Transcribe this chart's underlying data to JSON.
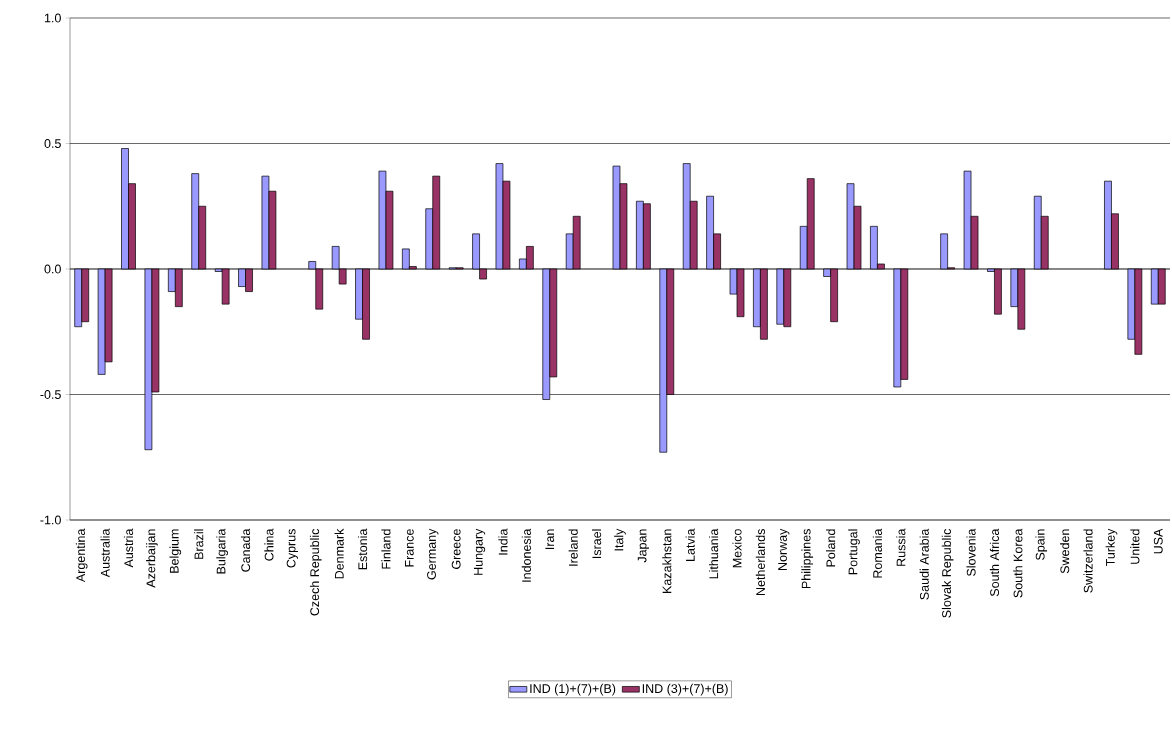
{
  "chart_data": {
    "type": "bar",
    "categories": [
      "Argentina",
      "Australia",
      "Austria",
      "Azerbaijan",
      "Belgium",
      "Brazil",
      "Bulgaria",
      "Canada",
      "China",
      "Cyprus",
      "Czech Republic",
      "Denmark",
      "Estonia",
      "Finland",
      "France",
      "Germany",
      "Greece",
      "Hungary",
      "India",
      "Indonesia",
      "Iran",
      "Ireland",
      "Israel",
      "Italy",
      "Japan",
      "Kazakhstan",
      "Latvia",
      "Lithuania",
      "Mexico",
      "Netherlands",
      "Norway",
      "Philippines",
      "Poland",
      "Portugal",
      "Romania",
      "Russia",
      "Saudi Arabia",
      "Slovak Republic",
      "Slovenia",
      "South Africa",
      "South Korea",
      "Spain",
      "Sweden",
      "Switzerland",
      "Turkey",
      "United",
      "USA"
    ],
    "series": [
      {
        "name": "IND (1)+(7)+(B)",
        "color": "#9999ff",
        "values": [
          -0.23,
          -0.42,
          0.48,
          -0.72,
          -0.09,
          0.38,
          -0.01,
          -0.07,
          0.37,
          null,
          0.03,
          0.09,
          -0.2,
          0.39,
          0.08,
          0.24,
          0.005,
          0.14,
          0.42,
          0.04,
          -0.52,
          0.14,
          null,
          0.41,
          0.27,
          -0.73,
          0.42,
          0.29,
          -0.1,
          -0.23,
          -0.22,
          0.17,
          -0.03,
          0.34,
          0.17,
          -0.47,
          null,
          0.14,
          0.39,
          -0.01,
          -0.15,
          0.29,
          null,
          null,
          0.35,
          -0.28,
          -0.14
        ]
      },
      {
        "name": "IND (3)+(7)+(B)",
        "color": "#993366",
        "values": [
          -0.21,
          -0.37,
          0.34,
          -0.49,
          -0.15,
          0.25,
          -0.14,
          -0.09,
          0.31,
          null,
          -0.16,
          -0.06,
          -0.28,
          0.31,
          0.01,
          0.37,
          0.005,
          -0.04,
          0.35,
          0.09,
          -0.43,
          0.21,
          null,
          0.34,
          0.26,
          -0.5,
          0.27,
          0.14,
          -0.19,
          -0.28,
          -0.23,
          0.36,
          -0.21,
          0.25,
          0.02,
          -0.44,
          null,
          0.005,
          0.21,
          -0.18,
          -0.24,
          0.21,
          null,
          null,
          0.22,
          -0.34,
          -0.14
        ]
      }
    ],
    "ylim": [
      -1.0,
      1.0
    ],
    "yticks": [
      {
        "value": -1.0,
        "label": "-1.0"
      },
      {
        "value": -0.5,
        "label": "-0.5"
      },
      {
        "value": 0.0,
        "label": "0.0"
      },
      {
        "value": 0.5,
        "label": "0.5"
      },
      {
        "value": 1.0,
        "label": "1.0"
      }
    ],
    "grid": "y",
    "legend": "bottom"
  }
}
